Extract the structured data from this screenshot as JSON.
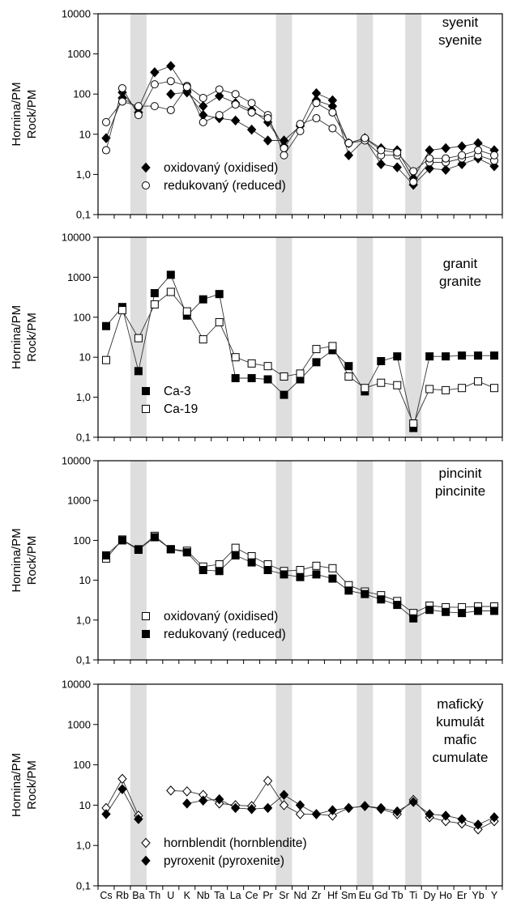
{
  "chart_data": {
    "type": "line",
    "yscale": "log",
    "ylim": [
      0.1,
      10000
    ],
    "yticks": [
      "0,1",
      "1,0",
      "10",
      "100",
      "1000",
      "10000"
    ],
    "ylabel_lines": [
      "Hornina/PM",
      "Rock/PM"
    ],
    "categories": [
      "Cs",
      "Rb",
      "Ba",
      "Th",
      "U",
      "K",
      "Nb",
      "Ta",
      "La",
      "Ce",
      "Pr",
      "Sr",
      "Nd",
      "Zr",
      "Hf",
      "Sm",
      "Eu",
      "Gd",
      "Tb",
      "Ti",
      "Dy",
      "Ho",
      "Er",
      "Yb",
      "Y"
    ],
    "highlighted_categories": [
      "Ba",
      "Sr",
      "Eu",
      "Ti"
    ],
    "panels": [
      {
        "id": "syenite",
        "title_lines": [
          "syenit",
          "syenite"
        ],
        "series": [
          {
            "name": "oxidovaný (oxidised)",
            "marker": "diamond-filled",
            "lines": [
              [
                8,
                80,
                45,
                350,
                500,
                120,
                30,
                25,
                22,
                13,
                7,
                7,
                16,
                105,
                70,
                3,
                7.5,
                1.8,
                1.5,
                0.55,
                1.4,
                1.3,
                1.8,
                2.5,
                1.6
              ],
              [
                null,
                110,
                35,
                null,
                100,
                110,
                50,
                90,
                60,
                40,
                20,
                5,
                null,
                70,
                50,
                6,
                8,
                4.5,
                4,
                0.8,
                4,
                4.5,
                5,
                6,
                4
              ]
            ]
          },
          {
            "name": "redukovaný (reduced)",
            "marker": "circle-open",
            "lines": [
              [
                4,
                140,
                30,
                175,
                210,
                160,
                80,
                130,
                100,
                60,
                30,
                3,
                12,
                60,
                35,
                6,
                7,
                3,
                3,
                0.65,
                2,
                2,
                2.5,
                3,
                2.2
              ],
              [
                20,
                65,
                50,
                50,
                40,
                150,
                20,
                30,
                55,
                35,
                25,
                4.5,
                18,
                25,
                14,
                6,
                8,
                4,
                3.5,
                1.2,
                2.5,
                2.5,
                3,
                4,
                3
              ]
            ]
          }
        ]
      },
      {
        "id": "granite",
        "title_lines": [
          "granit",
          "granite"
        ],
        "series": [
          {
            "name": "Ca-3",
            "marker": "square-filled",
            "values": [
              60,
              180,
              4.5,
              400,
              1150,
              110,
              280,
              380,
              3,
              3,
              2.8,
              1.15,
              2.8,
              7.5,
              15,
              6,
              1.4,
              8,
              10.5,
              0.17,
              10.5,
              10.5,
              11,
              11,
              11
            ]
          },
          {
            "name": "Ca-19",
            "marker": "square-open",
            "values": [
              8.5,
              150,
              30,
              210,
              430,
              140,
              28,
              75,
              10,
              7,
              6,
              3.3,
              3.9,
              16,
              19,
              3.3,
              1.7,
              2.3,
              2,
              0.22,
              1.6,
              1.5,
              1.7,
              2.5,
              1.7
            ]
          }
        ]
      },
      {
        "id": "pincinite",
        "title_lines": [
          "pincinit",
          "pincinite"
        ],
        "series": [
          {
            "name": "oxidovaný (oxidised)",
            "marker": "square-open",
            "values": [
              35,
              105,
              60,
              130,
              60,
              55,
              22,
              25,
              65,
              40,
              25,
              17,
              18,
              23,
              20,
              7.5,
              5.2,
              4.2,
              3,
              1.5,
              2.3,
              2.1,
              2.1,
              2.2,
              2.2
            ]
          },
          {
            "name": "redukovaný (reduced)",
            "marker": "square-filled",
            "values": [
              42,
              100,
              58,
              120,
              60,
              50,
              18,
              17,
              42,
              28,
              18,
              14,
              12,
              14,
              11,
              5.5,
              4.5,
              3.3,
              2.4,
              1.1,
              1.8,
              1.6,
              1.5,
              1.7,
              1.7
            ]
          }
        ]
      },
      {
        "id": "mafic-cumulate",
        "title_lines": [
          "mafický",
          "kumulát",
          "mafic",
          "cumulate"
        ],
        "series": [
          {
            "name": "hornblendit (hornblendite)",
            "marker": "diamond-open",
            "values": [
              8.5,
              45,
              5.5,
              null,
              23,
              22,
              18,
              11,
              10,
              9.5,
              40,
              10,
              6,
              6,
              5.5,
              8.5,
              9.5,
              8,
              6,
              13.5,
              5,
              4,
              3.5,
              2.5,
              4
            ]
          },
          {
            "name": "pyroxenit (pyroxenite)",
            "marker": "diamond-filled",
            "values": [
              6,
              25,
              4.5,
              null,
              null,
              11,
              13,
              14,
              8.5,
              8,
              8.5,
              18,
              10,
              6,
              7.5,
              8.5,
              9.5,
              8.5,
              7,
              12,
              6,
              5.5,
              4.5,
              3.3,
              5
            ]
          }
        ]
      }
    ]
  }
}
